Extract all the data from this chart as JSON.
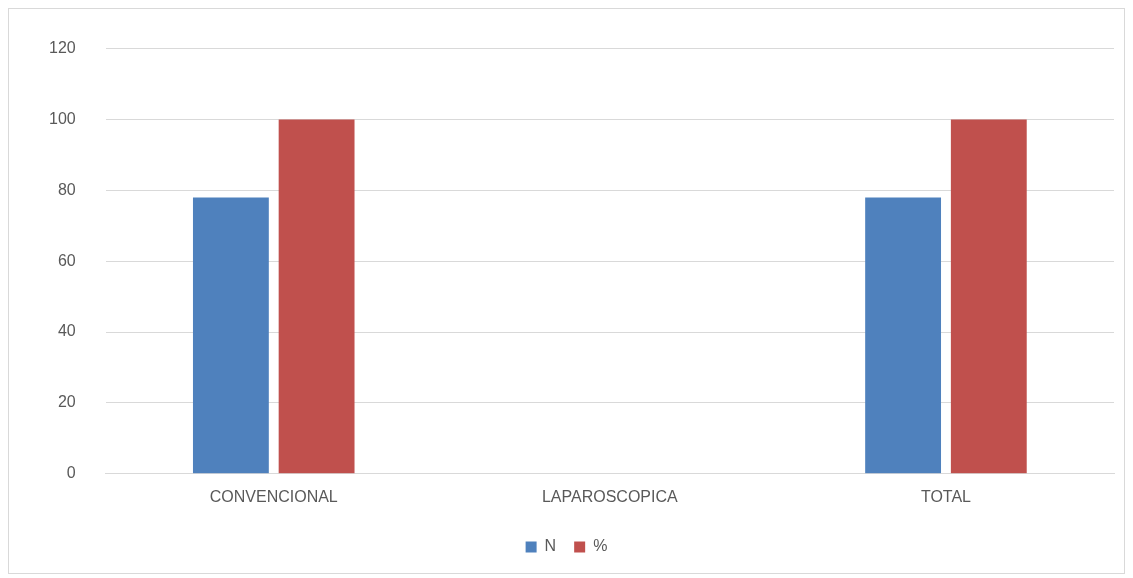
{
  "chart_data": {
    "type": "bar",
    "categories": [
      "CONVENCIONAL",
      "LAPAROSCOPICA",
      "TOTAL"
    ],
    "series": [
      {
        "name": "N",
        "color": "#4f81bd",
        "values": [
          78,
          0,
          78
        ]
      },
      {
        "name": "%",
        "color": "#c0504d",
        "values": [
          100,
          0,
          100
        ]
      }
    ],
    "ylim": [
      0,
      120
    ],
    "yticks": [
      0,
      20,
      40,
      60,
      80,
      100,
      120
    ],
    "grid": "y",
    "legend": "bottom"
  }
}
